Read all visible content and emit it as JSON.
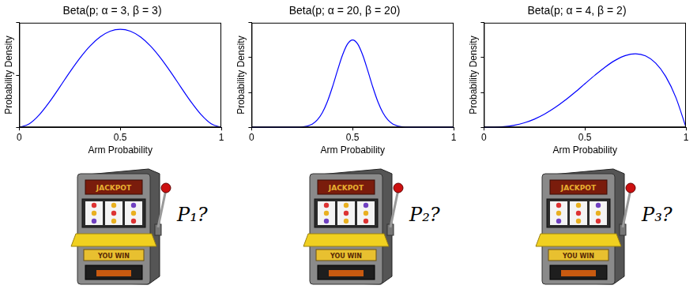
{
  "chart_data": [
    {
      "type": "line",
      "title": "Beta(p; α = 3, β = 3)",
      "x_label": "Arm Probability",
      "y_label": "Probability Density",
      "x": [
        0,
        0.05,
        0.1,
        0.15,
        0.2,
        0.25,
        0.3,
        0.35,
        0.4,
        0.45,
        0.5,
        0.55,
        0.6,
        0.65,
        0.7,
        0.75,
        0.8,
        0.85,
        0.9,
        0.95,
        1
      ],
      "values": [
        0,
        0.068,
        0.243,
        0.488,
        0.768,
        1.055,
        1.323,
        1.553,
        1.728,
        1.838,
        1.875,
        1.838,
        1.728,
        1.553,
        1.323,
        1.055,
        0.768,
        0.488,
        0.243,
        0.068,
        0
      ],
      "color": "#0000ff",
      "xlim": [
        0,
        1
      ],
      "xticks": [
        0,
        0.5,
        1
      ],
      "ylim": [
        0,
        2
      ],
      "yticks": [
        0,
        1,
        2
      ],
      "grid": false,
      "tick_labels": "x"
    },
    {
      "type": "line",
      "title": "Beta(p; α = 20, β = 20)",
      "x_label": "Arm Probability",
      "y_label": "Probability Density",
      "x": [
        0,
        0.1,
        0.15,
        0.2,
        0.25,
        0.3,
        0.325,
        0.35,
        0.375,
        0.4,
        0.425,
        0.45,
        0.475,
        0.5,
        0.525,
        0.55,
        0.575,
        0.6,
        0.625,
        0.65,
        0.675,
        0.7,
        0.75,
        0.8,
        0.85,
        0.9,
        1
      ],
      "values": [
        0,
        0,
        0,
        0.001,
        0.021,
        0.183,
        0.419,
        0.836,
        1.471,
        2.309,
        3.255,
        4.143,
        4.782,
        5.015,
        4.782,
        4.143,
        3.255,
        2.309,
        1.471,
        0.836,
        0.419,
        0.183,
        0.021,
        0.001,
        0,
        0,
        0
      ],
      "color": "#0000ff",
      "xlim": [
        0,
        1
      ],
      "xticks": [
        0,
        0.5,
        1
      ],
      "ylim": [
        0,
        6
      ],
      "yticks": [
        0,
        2,
        4,
        6
      ],
      "grid": false,
      "tick_labels": "x"
    },
    {
      "type": "line",
      "title": "Beta(p; α = 4, β = 2)",
      "x_label": "Arm Probability",
      "y_label": "Probability Density",
      "x": [
        0,
        0.05,
        0.1,
        0.15,
        0.2,
        0.25,
        0.3,
        0.35,
        0.4,
        0.45,
        0.5,
        0.55,
        0.6,
        0.65,
        0.7,
        0.75,
        0.8,
        0.85,
        0.9,
        0.95,
        1
      ],
      "values": [
        0,
        0.002,
        0.018,
        0.057,
        0.128,
        0.234,
        0.378,
        0.557,
        0.768,
        1.002,
        1.25,
        1.497,
        1.728,
        1.922,
        2.058,
        2.109,
        2.048,
        1.842,
        1.458,
        0.857,
        0
      ],
      "color": "#0000ff",
      "xlim": [
        0,
        1
      ],
      "xticks": [
        0,
        0.5,
        1
      ],
      "ylim": [
        0,
        3
      ],
      "yticks": [
        0,
        1,
        2,
        3
      ],
      "grid": false,
      "tick_labels": "x"
    }
  ],
  "machines": [
    {
      "label": "P₁?",
      "texts": [
        "JACKPOT",
        "YOU WIN"
      ]
    },
    {
      "label": "P₂?",
      "texts": [
        "JACKPOT",
        "YOU WIN"
      ]
    },
    {
      "label": "P₃?",
      "texts": [
        "JACKPOT",
        "YOU WIN"
      ]
    }
  ]
}
